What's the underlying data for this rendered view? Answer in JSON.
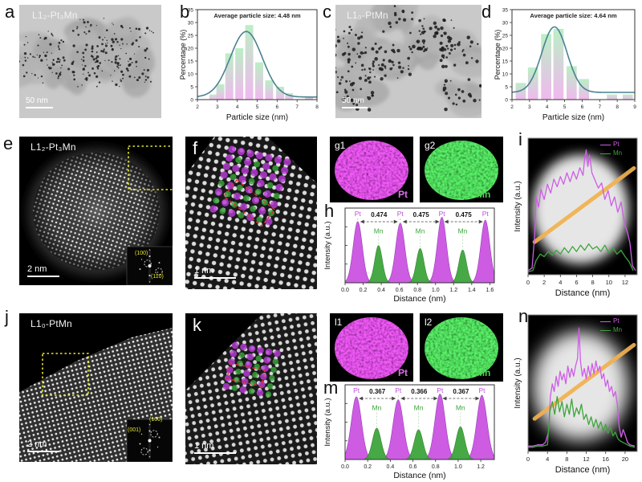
{
  "panels": {
    "a": {
      "letter": "a",
      "sample_label": "L1₂-Pt₃Mn",
      "scale_bar": "50 nm"
    },
    "b": {
      "letter": "b"
    },
    "c": {
      "letter": "c",
      "sample_label": "L1₀-PtMn",
      "scale_bar": "50 nm"
    },
    "d": {
      "letter": "d"
    },
    "e": {
      "letter": "e",
      "sample_label": "L1₂-Pt₃Mn",
      "scale_bar": "2 nm",
      "fft_labels": [
        "(100)",
        "(110)"
      ]
    },
    "f": {
      "letter": "f",
      "scale_bar": "1 nm"
    },
    "g1": {
      "letter": "g1",
      "element": "Pt"
    },
    "g2": {
      "letter": "g2",
      "element": "Mn"
    },
    "h": {
      "letter": "h"
    },
    "i": {
      "letter": "i",
      "legend": [
        "Pt",
        "Mn"
      ]
    },
    "j": {
      "letter": "j",
      "sample_label": "L1₀-PtMn",
      "scale_bar": "2 nm",
      "fft_labels": [
        "(001)",
        "(100)"
      ]
    },
    "k": {
      "letter": "k",
      "scale_bar": "1 nm"
    },
    "l1": {
      "letter": "l1",
      "element": "Pt"
    },
    "l2": {
      "letter": "l2",
      "element": "Mn"
    },
    "m": {
      "letter": "m"
    },
    "n": {
      "letter": "n",
      "legend": [
        "Pt",
        "Mn"
      ]
    }
  },
  "colors": {
    "pt": "#c94fe0",
    "mn": "#3da53d",
    "fit_curve": "#4a8191",
    "orange_line": "#f2b14e",
    "bar_top": "#b7eec2",
    "bar_bottom": "#f0b4ee",
    "yellow_box": "#e6e630",
    "red_outline": "#e03030"
  },
  "chart_data": [
    {
      "panel": "b",
      "type": "bar",
      "title": "Average particle size: 4.48 nm",
      "xlabel": "Particle size (nm)",
      "ylabel": "Percentage (%)",
      "xlim": [
        2,
        8
      ],
      "ylim": [
        0,
        35
      ],
      "xticks": [
        2,
        3,
        4,
        5,
        6,
        7,
        8
      ],
      "yticks": [
        0,
        5,
        10,
        15,
        20,
        25,
        30,
        35
      ],
      "bar_width": 0.4,
      "bars": {
        "x": [
          2.8,
          3.15,
          3.6,
          4.1,
          4.6,
          5.1,
          5.6,
          6.15,
          6.6,
          7.6
        ],
        "values": [
          2,
          6,
          18,
          20,
          29,
          14.5,
          7.5,
          5,
          2.5,
          1
        ]
      },
      "fit_curve": {
        "mean": 4.45,
        "sigma": 0.8,
        "amp": 25.5,
        "base": 1
      }
    },
    {
      "panel": "d",
      "type": "bar",
      "title": "Average particle size: 4.64 nm",
      "xlabel": "Particle size (nm)",
      "ylabel": "Percentage (%)",
      "xlim": [
        2,
        9
      ],
      "ylim": [
        0,
        35
      ],
      "xticks": [
        2,
        3,
        4,
        5,
        6,
        7,
        8,
        9
      ],
      "yticks": [
        0,
        5,
        10,
        15,
        20,
        25,
        30,
        35
      ],
      "bar_width": 0.58,
      "bars": {
        "x": [
          2.5,
          3.2,
          3.95,
          4.65,
          5.4,
          6.1,
          7.7,
          8.6
        ],
        "values": [
          6.5,
          12.5,
          25.5,
          27.5,
          13,
          8,
          2,
          2
        ]
      },
      "fit_curve": {
        "mean": 4.42,
        "sigma": 0.72,
        "amp": 25.5,
        "base": 2.8
      }
    },
    {
      "panel": "h",
      "type": "profile",
      "xlabel": "Distance (nm)",
      "ylabel": "Intensity (a.u.)",
      "xlim": [
        0,
        1.65
      ],
      "xticks": [
        0,
        0.2,
        0.4,
        0.6,
        0.8,
        1.0,
        1.2,
        1.4,
        1.6
      ],
      "pt_label": "Pt",
      "mn_label": "Mn",
      "pt_peaks": [
        {
          "x": 0.14,
          "h": 0.82
        },
        {
          "x": 0.61,
          "h": 0.8
        },
        {
          "x": 1.07,
          "h": 0.88
        },
        {
          "x": 1.55,
          "h": 0.84
        }
      ],
      "mn_peaks": [
        {
          "x": 0.37,
          "h": 0.5
        },
        {
          "x": 0.83,
          "h": 0.46
        },
        {
          "x": 1.3,
          "h": 0.44
        }
      ],
      "peak_sigma": {
        "pt": 0.05,
        "mn": 0.042
      },
      "spacing_labels": [
        "0.474",
        "0.475",
        "0.475"
      ]
    },
    {
      "panel": "i",
      "type": "line",
      "xlabel": "Distance (nm)",
      "ylabel": "Intensity (a.u.)",
      "xlim": [
        0,
        13.5
      ],
      "xticks": [
        0,
        2,
        4,
        6,
        8,
        10,
        12
      ],
      "series": [
        {
          "name": "Pt",
          "points": [
            [
              0,
              2
            ],
            [
              0.5,
              4
            ],
            [
              0.8,
              28
            ],
            [
              1.0,
              60
            ],
            [
              1.3,
              52
            ],
            [
              1.6,
              66
            ],
            [
              2.0,
              58
            ],
            [
              2.4,
              70
            ],
            [
              2.8,
              63
            ],
            [
              3.2,
              74
            ],
            [
              3.6,
              68
            ],
            [
              4.0,
              76
            ],
            [
              4.4,
              70
            ],
            [
              4.8,
              79
            ],
            [
              5.2,
              72
            ],
            [
              5.6,
              80
            ],
            [
              6.0,
              74
            ],
            [
              6.4,
              83
            ],
            [
              6.8,
              77
            ],
            [
              7.0,
              90
            ],
            [
              7.2,
              97
            ],
            [
              7.4,
              84
            ],
            [
              7.6,
              93
            ],
            [
              7.9,
              79
            ],
            [
              8.3,
              73
            ],
            [
              8.7,
              67
            ],
            [
              9.1,
              71
            ],
            [
              9.5,
              58
            ],
            [
              9.9,
              65
            ],
            [
              10.3,
              53
            ],
            [
              10.7,
              60
            ],
            [
              11.1,
              48
            ],
            [
              11.5,
              56
            ],
            [
              11.9,
              40
            ],
            [
              12.3,
              32
            ],
            [
              12.6,
              24
            ],
            [
              12.9,
              6
            ],
            [
              13.3,
              2
            ]
          ]
        },
        {
          "name": "Mn",
          "points": [
            [
              0,
              1
            ],
            [
              0.6,
              2
            ],
            [
              1.0,
              10
            ],
            [
              1.5,
              15
            ],
            [
              2.0,
              13
            ],
            [
              2.5,
              17
            ],
            [
              3.0,
              14
            ],
            [
              3.5,
              18
            ],
            [
              4.0,
              15
            ],
            [
              4.5,
              20
            ],
            [
              5.0,
              16
            ],
            [
              5.5,
              21
            ],
            [
              6.0,
              17
            ],
            [
              6.5,
              22
            ],
            [
              7.0,
              18
            ],
            [
              7.5,
              23
            ],
            [
              8.0,
              19
            ],
            [
              8.5,
              21
            ],
            [
              9.0,
              17
            ],
            [
              9.5,
              22
            ],
            [
              10.0,
              16
            ],
            [
              10.5,
              20
            ],
            [
              11.0,
              15
            ],
            [
              11.5,
              18
            ],
            [
              12.0,
              13
            ],
            [
              12.5,
              9
            ],
            [
              13.0,
              2
            ]
          ]
        }
      ]
    },
    {
      "panel": "m",
      "type": "profile",
      "xlabel": "Distance (nm)",
      "ylabel": "Intensity (a.u.)",
      "xlim": [
        0,
        1.32
      ],
      "xticks": [
        0,
        0.2,
        0.4,
        0.6,
        0.8,
        1.0,
        1.2
      ],
      "pt_label": "Pt",
      "mn_label": "Mn",
      "pt_peaks": [
        {
          "x": 0.1,
          "h": 0.84
        },
        {
          "x": 0.47,
          "h": 0.8
        },
        {
          "x": 0.84,
          "h": 0.88
        },
        {
          "x": 1.21,
          "h": 0.86
        }
      ],
      "mn_peaks": [
        {
          "x": 0.28,
          "h": 0.42
        },
        {
          "x": 0.65,
          "h": 0.4
        },
        {
          "x": 1.02,
          "h": 0.44
        }
      ],
      "peak_sigma": {
        "pt": 0.045,
        "mn": 0.038
      },
      "spacing_labels": [
        "0.367",
        "0.366",
        "0.367"
      ]
    },
    {
      "panel": "n",
      "type": "line",
      "xlabel": "Distance (nm)",
      "ylabel": "Intensity (a.u.)",
      "xlim": [
        0,
        22.5
      ],
      "xticks": [
        0,
        4,
        8,
        12,
        16,
        20
      ],
      "series": [
        {
          "name": "Pt",
          "points": [
            [
              0,
              3
            ],
            [
              1,
              3
            ],
            [
              2,
              4
            ],
            [
              3,
              4
            ],
            [
              3.6,
              6
            ],
            [
              4.2,
              14
            ],
            [
              4.6,
              42
            ],
            [
              5.0,
              52
            ],
            [
              5.4,
              46
            ],
            [
              5.8,
              58
            ],
            [
              6.2,
              50
            ],
            [
              6.6,
              62
            ],
            [
              7.0,
              55
            ],
            [
              7.4,
              60
            ],
            [
              7.8,
              52
            ],
            [
              8.2,
              66
            ],
            [
              8.6,
              57
            ],
            [
              9.0,
              64
            ],
            [
              9.4,
              58
            ],
            [
              9.8,
              66
            ],
            [
              10.2,
              72
            ],
            [
              10.5,
              96
            ],
            [
              10.8,
              70
            ],
            [
              11.2,
              58
            ],
            [
              11.6,
              64
            ],
            [
              12.0,
              56
            ],
            [
              12.4,
              66
            ],
            [
              12.8,
              58
            ],
            [
              13.2,
              68
            ],
            [
              13.6,
              60
            ],
            [
              14.0,
              70
            ],
            [
              14.4,
              62
            ],
            [
              14.8,
              66
            ],
            [
              15.2,
              56
            ],
            [
              15.6,
              60
            ],
            [
              16.0,
              50
            ],
            [
              16.4,
              55
            ],
            [
              16.8,
              46
            ],
            [
              17.2,
              50
            ],
            [
              17.6,
              42
            ],
            [
              18.0,
              46
            ],
            [
              18.4,
              36
            ],
            [
              18.8,
              18
            ],
            [
              19.2,
              10
            ],
            [
              19.6,
              16
            ],
            [
              20.0,
              12
            ],
            [
              20.5,
              6
            ],
            [
              21,
              4
            ],
            [
              22,
              3
            ]
          ]
        },
        {
          "name": "Mn",
          "points": [
            [
              0,
              2
            ],
            [
              1,
              2
            ],
            [
              2,
              3
            ],
            [
              3,
              3
            ],
            [
              4,
              4
            ],
            [
              4.5,
              30
            ],
            [
              5,
              38
            ],
            [
              5.5,
              28
            ],
            [
              6,
              42
            ],
            [
              6.5,
              30
            ],
            [
              7,
              38
            ],
            [
              7.5,
              26
            ],
            [
              8,
              36
            ],
            [
              8.5,
              28
            ],
            [
              9,
              40
            ],
            [
              9.5,
              26
            ],
            [
              10,
              33
            ],
            [
              10.5,
              28
            ],
            [
              11,
              36
            ],
            [
              11.5,
              24
            ],
            [
              12,
              28
            ],
            [
              12.5,
              20
            ],
            [
              13,
              26
            ],
            [
              13.5,
              18
            ],
            [
              14,
              24
            ],
            [
              14.5,
              17
            ],
            [
              15,
              22
            ],
            [
              15.5,
              15
            ],
            [
              16,
              20
            ],
            [
              16.5,
              13
            ],
            [
              17,
              18
            ],
            [
              17.5,
              11
            ],
            [
              18,
              14
            ],
            [
              18.5,
              9
            ],
            [
              19,
              7
            ],
            [
              20,
              5
            ],
            [
              21,
              3
            ],
            [
              22,
              2
            ]
          ]
        }
      ]
    }
  ]
}
